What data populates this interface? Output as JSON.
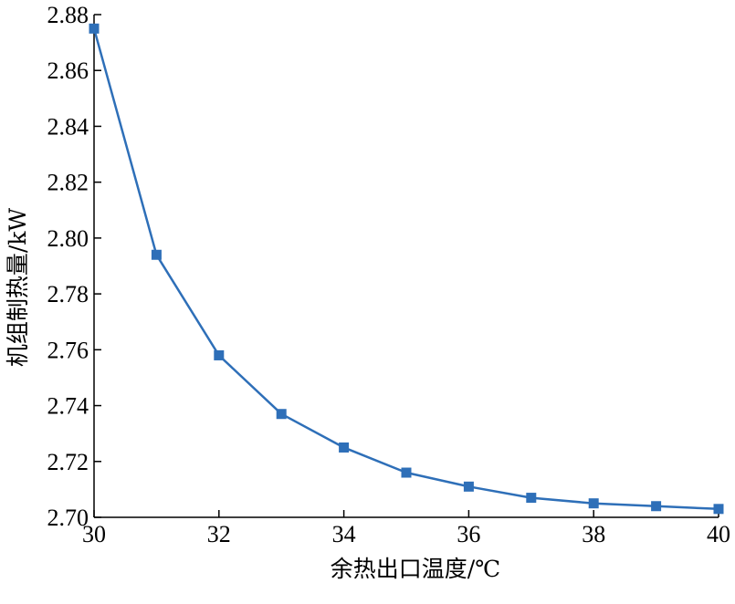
{
  "chart_data": {
    "type": "line",
    "xlabel": "余热出口温度/℃",
    "ylabel": "机组制热量/kW",
    "x": [
      30,
      31,
      32,
      33,
      34,
      35,
      36,
      37,
      38,
      39,
      40
    ],
    "series": [
      {
        "values": [
          2.875,
          2.794,
          2.758,
          2.737,
          2.725,
          2.716,
          2.711,
          2.707,
          2.705,
          2.704,
          2.703
        ],
        "color": "#2e6fb8",
        "marker": "square"
      }
    ],
    "xlim": [
      30,
      40
    ],
    "ylim": [
      2.7,
      2.88
    ],
    "xticks": [
      "30",
      "32",
      "34",
      "36",
      "38",
      "40"
    ],
    "yticks": [
      "2.70",
      "2.72",
      "2.74",
      "2.76",
      "2.78",
      "2.80",
      "2.82",
      "2.84",
      "2.86",
      "2.88"
    ],
    "grid": false,
    "legend": "none"
  }
}
